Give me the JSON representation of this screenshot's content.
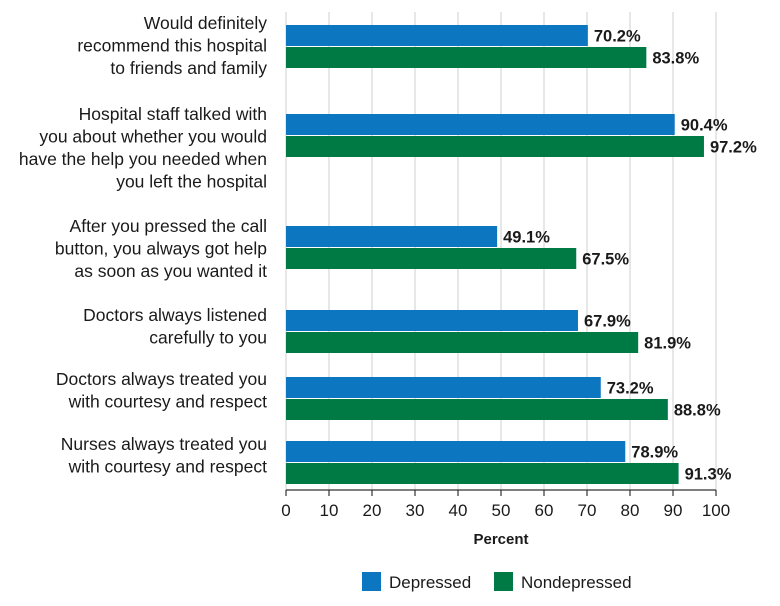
{
  "chart_data": {
    "type": "bar",
    "orientation": "horizontal",
    "categories": [
      [
        "Would definitely",
        "recommend this hospital",
        "to friends and family"
      ],
      [
        "Hospital staff talked with",
        "you about whether you would",
        "have the help you needed when",
        "you left the hospital"
      ],
      [
        "After you pressed the call",
        "button, you always got help",
        "as soon as you wanted it"
      ],
      [
        "Doctors always listened",
        "carefully to you"
      ],
      [
        "Doctors always treated you",
        "with courtesy and respect"
      ],
      [
        "Nurses always treated you",
        "with courtesy and respect"
      ]
    ],
    "series": [
      {
        "name": "Depressed",
        "color": "#0d76c0",
        "values": [
          70.2,
          90.4,
          49.1,
          67.9,
          73.2,
          78.9
        ],
        "value_labels": [
          "70.2%",
          "90.4%",
          "49.1%",
          "67.9%",
          "73.2%",
          "78.9%"
        ]
      },
      {
        "name": "Nondepressed",
        "color": "#007a45",
        "values": [
          83.8,
          97.2,
          67.5,
          81.9,
          88.8,
          91.3
        ],
        "value_labels": [
          "83.8%",
          "97.2%",
          "67.5%",
          "81.9%",
          "88.8%",
          "91.3%"
        ]
      }
    ],
    "xlim": [
      0,
      100
    ],
    "xticks": [
      0,
      10,
      20,
      30,
      40,
      50,
      60,
      70,
      80,
      90,
      100
    ],
    "xlabel": "Percent",
    "ylabel": "",
    "title": "",
    "grid": "vertical",
    "grid_color": "#cfcfcf",
    "legend_position": "bottom"
  }
}
